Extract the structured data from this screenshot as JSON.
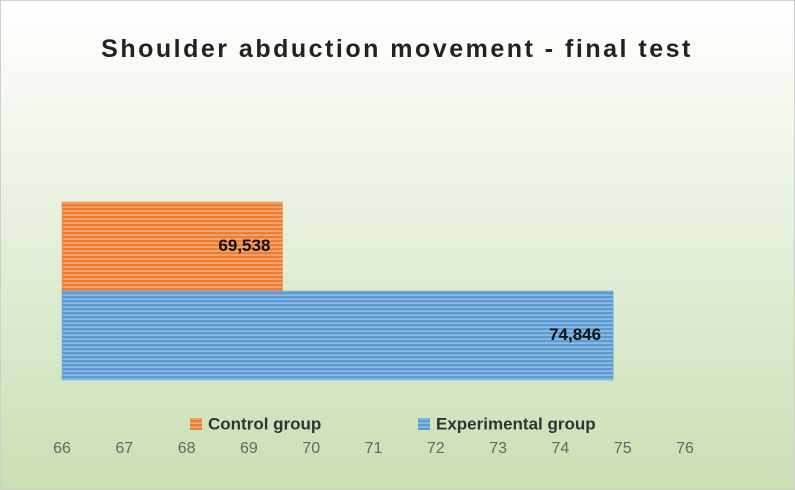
{
  "chart_data": {
    "type": "bar",
    "orientation": "horizontal",
    "title": "Shoulder abduction movement - final test",
    "categories": [
      null
    ],
    "series": [
      {
        "name": "Control group",
        "color": "#ed7d31",
        "values": [
          69.538
        ],
        "value_labels": [
          "69,538"
        ]
      },
      {
        "name": "Experimental group",
        "color": "#5b9bd5",
        "values": [
          74.846
        ],
        "value_labels": [
          "74,846"
        ]
      }
    ],
    "xlim": [
      66,
      76
    ],
    "xticks": [
      66,
      67,
      68,
      69,
      70,
      71,
      72,
      73,
      74,
      75,
      76
    ],
    "grid": false,
    "legend": "bottom"
  }
}
